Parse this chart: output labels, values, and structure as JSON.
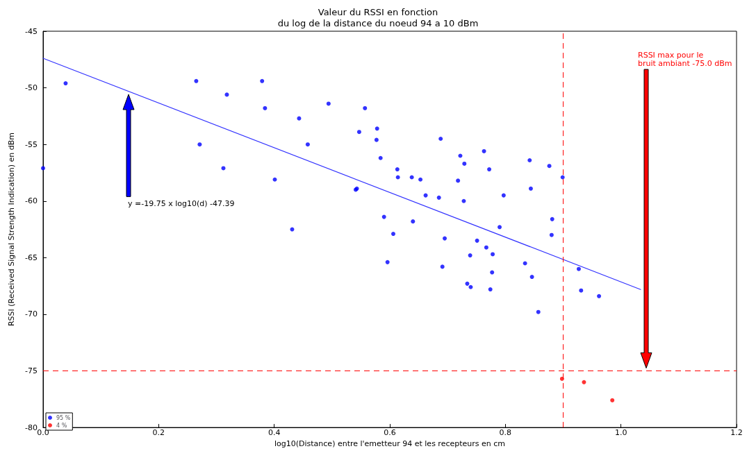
{
  "chart_data": {
    "type": "scatter",
    "title": "Valeur du RSSI en fonction\ndu log de la distance du noeud 94 a 10 dBm",
    "xlabel": "log10(Distance) entre l'emetteur 94 et les recepteurs en cm",
    "ylabel": "RSSI (Received Signal Strength Indication) en dBm",
    "series": [
      {
        "name": "95 %",
        "color": "#0000ff",
        "x": [
          0.0,
          0.039,
          0.265,
          0.271,
          0.312,
          0.318,
          0.379,
          0.384,
          0.401,
          0.431,
          0.443,
          0.458,
          0.494,
          0.541,
          0.543,
          0.547,
          0.557,
          0.577,
          0.578,
          0.584,
          0.59,
          0.596,
          0.606,
          0.613,
          0.614,
          0.638,
          0.64,
          0.653,
          0.662,
          0.685,
          0.688,
          0.691,
          0.695,
          0.718,
          0.722,
          0.728,
          0.729,
          0.734,
          0.739,
          0.74,
          0.751,
          0.763,
          0.767,
          0.772,
          0.774,
          0.777,
          0.778,
          0.79,
          0.797,
          0.834,
          0.842,
          0.844,
          0.846,
          0.857,
          0.876,
          0.88,
          0.881,
          0.899,
          0.927,
          0.931,
          0.962
        ],
        "values": [
          -57.1,
          -49.6,
          -49.4,
          -55.0,
          -57.1,
          -50.6,
          -49.4,
          -51.8,
          -58.1,
          -62.5,
          -52.7,
          -55.0,
          -51.4,
          -59.0,
          -58.9,
          -53.9,
          -51.8,
          -54.6,
          -53.6,
          -56.2,
          -61.4,
          -65.4,
          -62.9,
          -57.2,
          -57.9,
          -57.9,
          -61.8,
          -58.1,
          -59.5,
          -59.7,
          -54.5,
          -65.8,
          -63.3,
          -58.2,
          -56.0,
          -60.0,
          -56.7,
          -67.3,
          -64.8,
          -67.6,
          -63.5,
          -55.6,
          -64.1,
          -57.2,
          -67.8,
          -66.3,
          -64.7,
          -62.3,
          -59.5,
          -65.5,
          -56.4,
          -58.9,
          -66.7,
          -69.8,
          -56.9,
          -63.0,
          -61.6,
          -57.9,
          -66.0,
          -67.9,
          -68.4
        ]
      },
      {
        "name": "4 %",
        "color": "#ff0000",
        "x": [
          0.898,
          0.936,
          0.985
        ],
        "values": [
          -75.7,
          -76.0,
          -77.6
        ]
      },
      {
        "type": "line",
        "color": "#3333ff",
        "marker": "none",
        "x": [
          0.0,
          1.034
        ],
        "values": [
          -47.39,
          -67.81
        ]
      }
    ],
    "ref_lines": [
      {
        "axis": "y",
        "value": -75,
        "color": "#ff0000",
        "line_style": "dashed"
      },
      {
        "axis": "x",
        "value": 0.899,
        "color": "#ff0000",
        "line_style": "dashed"
      }
    ],
    "annotations": [
      "y =-19.75 x log10(d) -47.39",
      "RSSI max pour le\nbruit ambiant -75.0 dBm"
    ],
    "xlim": [
      0,
      1.2
    ],
    "xticks": [
      {
        "value": 0,
        "label": "0.0"
      },
      0.2,
      0.4,
      0.6,
      0.8,
      {
        "value": 1,
        "label": "1.0"
      },
      {
        "value": 1.2,
        "label": "1.2"
      }
    ],
    "ylim": [
      -80,
      -45
    ],
    "yticks": [
      -80,
      -75,
      -70,
      -65,
      -60,
      -55,
      -50,
      -45
    ],
    "marker": "circle",
    "grid": false,
    "legend": "bottom left"
  }
}
